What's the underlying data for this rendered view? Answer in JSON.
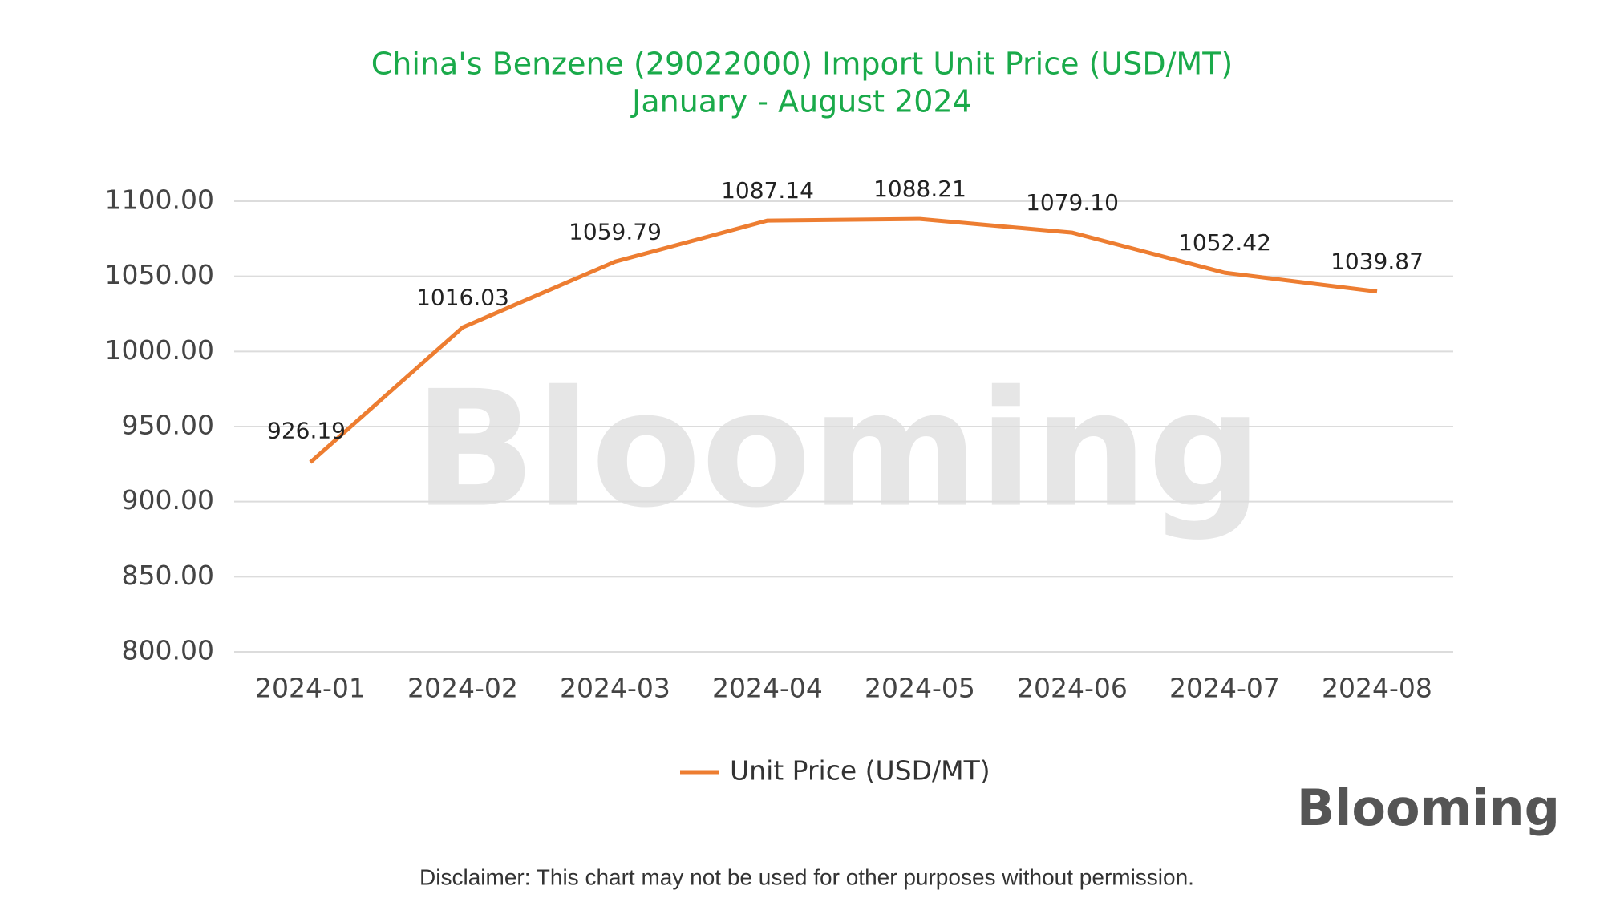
{
  "chart_data": {
    "type": "line",
    "title": "China's Benzene (29022000) Import Unit Price (USD/MT)",
    "subtitle": "January - August 2024",
    "categories": [
      "2024-01",
      "2024-02",
      "2024-03",
      "2024-04",
      "2024-05",
      "2024-06",
      "2024-07",
      "2024-08"
    ],
    "series": [
      {
        "name": "Unit Price (USD/MT)",
        "color": "#ed7d31",
        "values": [
          926.19,
          1016.03,
          1059.79,
          1087.14,
          1088.21,
          1079.1,
          1052.42,
          1039.87
        ],
        "value_labels": [
          "926.19",
          "1016.03",
          "1059.79",
          "1087.14",
          "1088.21",
          "1079.10",
          "1052.42",
          "1039.87"
        ]
      }
    ],
    "ylim": [
      800,
      1100
    ],
    "yticks": [
      {
        "value": 800,
        "label": "800.00"
      },
      {
        "value": 850,
        "label": "850.00"
      },
      {
        "value": 900,
        "label": "900.00"
      },
      {
        "value": 950,
        "label": "950.00"
      },
      {
        "value": 1000,
        "label": "1000.00"
      },
      {
        "value": 1050,
        "label": "1050.00"
      },
      {
        "value": 1100,
        "label": "1100.00"
      }
    ],
    "grid": true,
    "legend": "bottom"
  },
  "watermark": "Blooming",
  "logo": "Blooming",
  "disclaimer": "Disclaimer: This chart may not be used for other purposes without permission."
}
